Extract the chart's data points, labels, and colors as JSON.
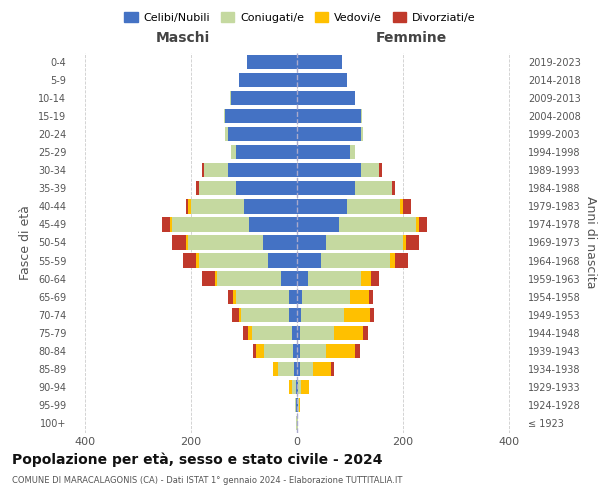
{
  "age_groups": [
    "100+",
    "95-99",
    "90-94",
    "85-89",
    "80-84",
    "75-79",
    "70-74",
    "65-69",
    "60-64",
    "55-59",
    "50-54",
    "45-49",
    "40-44",
    "35-39",
    "30-34",
    "25-29",
    "20-24",
    "15-19",
    "10-14",
    "5-9",
    "0-4"
  ],
  "birth_years": [
    "≤ 1923",
    "1924-1928",
    "1929-1933",
    "1934-1938",
    "1939-1943",
    "1944-1948",
    "1949-1953",
    "1954-1958",
    "1959-1963",
    "1964-1968",
    "1969-1973",
    "1974-1978",
    "1979-1983",
    "1984-1988",
    "1989-1993",
    "1994-1998",
    "1999-2003",
    "2004-2008",
    "2009-2013",
    "2014-2018",
    "2019-2023"
  ],
  "maschi": {
    "celibi": [
      0,
      1,
      2,
      5,
      8,
      10,
      15,
      15,
      30,
      55,
      65,
      90,
      100,
      115,
      130,
      115,
      130,
      135,
      125,
      110,
      95
    ],
    "coniugati": [
      1,
      2,
      8,
      30,
      55,
      75,
      90,
      100,
      120,
      130,
      140,
      145,
      100,
      70,
      45,
      10,
      5,
      2,
      2,
      0,
      0
    ],
    "vedovi": [
      0,
      0,
      5,
      10,
      15,
      8,
      5,
      5,
      5,
      5,
      5,
      5,
      5,
      0,
      0,
      0,
      0,
      0,
      0,
      0,
      0
    ],
    "divorziati": [
      0,
      0,
      0,
      0,
      5,
      8,
      12,
      10,
      25,
      25,
      25,
      15,
      5,
      5,
      5,
      0,
      0,
      0,
      0,
      0,
      0
    ]
  },
  "femmine": {
    "nubili": [
      0,
      1,
      2,
      5,
      5,
      5,
      8,
      10,
      20,
      45,
      55,
      80,
      95,
      110,
      120,
      100,
      120,
      120,
      110,
      95,
      85
    ],
    "coniugate": [
      1,
      2,
      5,
      25,
      50,
      65,
      80,
      90,
      100,
      130,
      145,
      145,
      100,
      70,
      35,
      10,
      5,
      2,
      0,
      0,
      0
    ],
    "vedove": [
      0,
      3,
      15,
      35,
      55,
      55,
      50,
      35,
      20,
      10,
      5,
      5,
      5,
      0,
      0,
      0,
      0,
      0,
      0,
      0,
      0
    ],
    "divorziate": [
      0,
      0,
      0,
      5,
      8,
      8,
      8,
      8,
      15,
      25,
      25,
      15,
      15,
      5,
      5,
      0,
      0,
      0,
      0,
      0,
      0
    ]
  },
  "colors": {
    "celibi": "#4472c4",
    "coniugati": "#c5d9a0",
    "vedovi": "#ffc000",
    "divorziati": "#c0392b"
  },
  "xlim": 430,
  "title": "Popolazione per età, sesso e stato civile - 2024",
  "subtitle": "COMUNE DI MARACALAGONIS (CA) - Dati ISTAT 1° gennaio 2024 - Elaborazione TUTTITALIA.IT",
  "ylabel": "Fasce di età",
  "ylabel_right": "Anni di nascita",
  "xlabel_maschi": "Maschi",
  "xlabel_femmine": "Femmine",
  "legend_labels": [
    "Celibi/Nubili",
    "Coniugati/e",
    "Vedovi/e",
    "Divorziati/e"
  ],
  "bg_color": "#ffffff",
  "grid_color": "#cccccc"
}
